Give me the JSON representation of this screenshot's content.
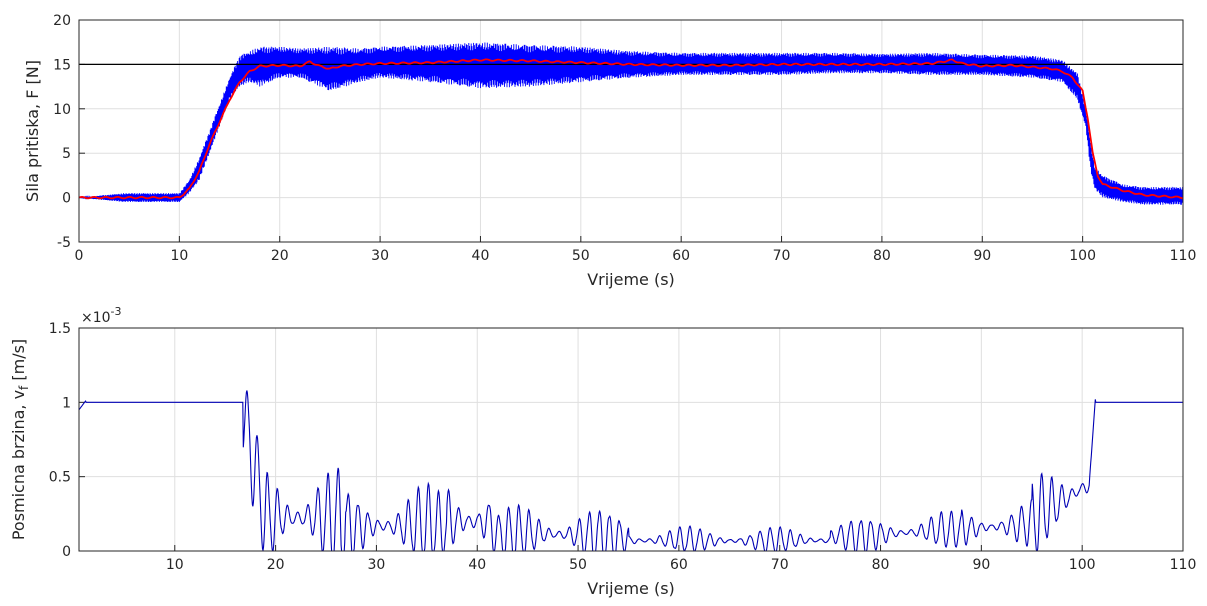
{
  "chart_data": [
    {
      "type": "line",
      "xlabel": "Vrijeme (s)",
      "ylabel": "Sila pritiska, F [N]",
      "xlim": [
        0,
        110
      ],
      "ylim": [
        -5,
        20
      ],
      "xticks": [
        0,
        10,
        20,
        30,
        40,
        50,
        60,
        70,
        80,
        90,
        100,
        110
      ],
      "yticks": [
        -5,
        0,
        5,
        10,
        15,
        20
      ],
      "grid": true,
      "reference_line": {
        "y": 15,
        "color": "#000000"
      },
      "series": [
        {
          "role": "measured force (noisy band)",
          "color": "#0000ff",
          "x": [
            0,
            4.5,
            10,
            11,
            12,
            13,
            14,
            15,
            16,
            17,
            18,
            20,
            22,
            25,
            28,
            30,
            35,
            40,
            45,
            50,
            55,
            60,
            65,
            70,
            75,
            80,
            85,
            90,
            95,
            98,
            99.5,
            100.3,
            100.8,
            101.2,
            102,
            104,
            106,
            110
          ],
          "y_upper": [
            0,
            0.5,
            0.5,
            2,
            4.5,
            7.5,
            10.5,
            13.5,
            16,
            16.5,
            17,
            17,
            16.8,
            17,
            16.8,
            17,
            17.2,
            17.5,
            17.2,
            17,
            16.5,
            16.3,
            16.3,
            16.3,
            16.3,
            16.2,
            16.3,
            16.1,
            16,
            15.5,
            14,
            10,
            6,
            3.5,
            2.5,
            1.5,
            1.2,
            1.2
          ],
          "y_lower": [
            0,
            -0.5,
            -0.5,
            0.5,
            2,
            5,
            8,
            11,
            12.5,
            13,
            12.5,
            13.5,
            13.5,
            12,
            13,
            13.5,
            13,
            12.3,
            12.5,
            13,
            13.5,
            13.8,
            13.8,
            13.8,
            14,
            14,
            13.8,
            13.8,
            13.5,
            13,
            11,
            8,
            3,
            1,
            0,
            -0.5,
            -0.8,
            -0.8
          ]
        },
        {
          "role": "filtered force",
          "color": "#ff0000",
          "x": [
            0,
            10,
            11,
            12,
            13,
            14,
            15,
            16,
            17,
            18,
            20,
            22,
            23,
            24,
            25,
            26,
            28,
            30,
            35,
            40,
            45,
            50,
            55,
            60,
            65,
            70,
            75,
            80,
            85,
            87,
            88,
            90,
            93,
            95,
            97,
            98,
            99,
            100,
            100.5,
            101,
            101.5,
            102,
            104,
            106,
            110
          ],
          "y": [
            0,
            0,
            1,
            3,
            6,
            8.5,
            11,
            13,
            14.2,
            14.8,
            14.9,
            14.8,
            15.3,
            14.8,
            14.5,
            14.8,
            15,
            15.1,
            15.2,
            15.5,
            15.4,
            15.2,
            15,
            14.9,
            14.9,
            15,
            15,
            15,
            15.1,
            15.5,
            15.1,
            14.8,
            14.9,
            14.7,
            14.5,
            14.2,
            13.5,
            12,
            9,
            5,
            2.5,
            1.5,
            0.8,
            0.3,
            0
          ]
        }
      ]
    },
    {
      "type": "line",
      "xlabel": "Vrijeme (s)",
      "ylabel": "Posmicna brzina, v",
      "ylabel_subscript": "f",
      "ylabel_unit": " [m/s]",
      "exponent_label": "×10",
      "exponent_value": "-3",
      "xlim": [
        0.5,
        110
      ],
      "ylim": [
        0,
        1.5
      ],
      "xticks": [
        10,
        20,
        30,
        40,
        50,
        60,
        70,
        80,
        90,
        100,
        110
      ],
      "yticks": [
        0,
        0.5,
        1,
        1.5
      ],
      "ytick_labels": [
        "0",
        "0.5",
        "1",
        "1.5"
      ],
      "grid": true,
      "series": [
        {
          "color": "#0000b4",
          "segments": [
            {
              "x0": 0.5,
              "x1": 16.8,
              "level": [
                1.0,
                1.0
              ],
              "osc": 0.0
            },
            {
              "x0": 16.8,
              "x1": 19.0,
              "level": [
                0.95,
                0.2
              ],
              "osc": 0.35
            },
            {
              "x0": 19.0,
              "x1": 27.0,
              "level": [
                0.22,
                0.22
              ],
              "osc": 0.42
            },
            {
              "x0": 27.0,
              "x1": 37.0,
              "level": [
                0.18,
                0.15
              ],
              "osc": 0.3
            },
            {
              "x0": 37.0,
              "x1": 41.5,
              "level": [
                0.2,
                0.2
              ],
              "osc": 0.4
            },
            {
              "x0": 41.5,
              "x1": 55.0,
              "level": [
                0.12,
                0.1
              ],
              "osc": 0.22
            },
            {
              "x0": 55.0,
              "x1": 75.0,
              "level": [
                0.07,
                0.07
              ],
              "osc": 0.1
            },
            {
              "x0": 75.0,
              "x1": 88.0,
              "level": [
                0.1,
                0.14
              ],
              "osc": 0.14
            },
            {
              "x0": 88.0,
              "x1": 95.0,
              "level": [
                0.15,
                0.18
              ],
              "osc": 0.18
            },
            {
              "x0": 95.0,
              "x1": 100.7,
              "level": [
                0.2,
                0.45
              ],
              "osc": 0.3
            },
            {
              "x0": 100.7,
              "x1": 101.3,
              "level": [
                0.45,
                1.02
              ],
              "osc": 0.0
            },
            {
              "x0": 101.3,
              "x1": 110,
              "level": [
                1.0,
                1.0
              ],
              "osc": 0.0
            }
          ]
        }
      ]
    }
  ]
}
